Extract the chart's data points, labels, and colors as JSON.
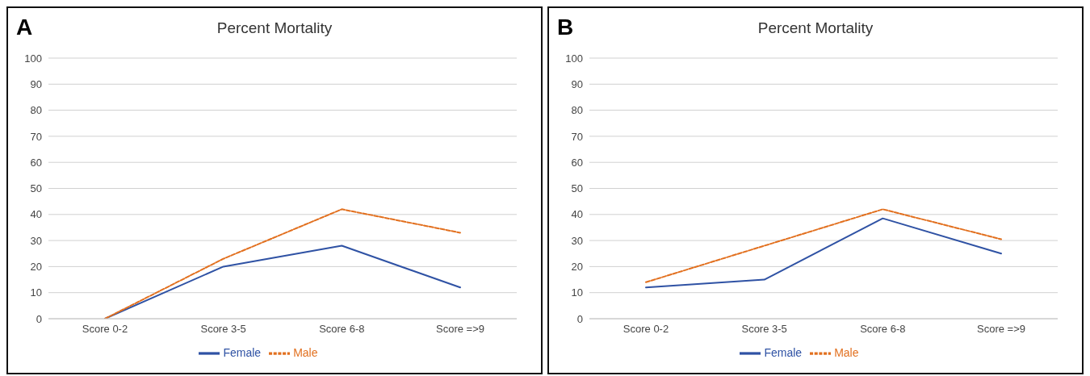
{
  "chart_data": [
    {
      "type": "line",
      "title": "Percent Mortality",
      "annotations": [
        "A"
      ],
      "categories": [
        "Score 0-2",
        "Score 3-5",
        "Score 6-8",
        "Score =>9"
      ],
      "series": [
        {
          "name": "Female",
          "color": "#2f52a4",
          "values": [
            0,
            20,
            28,
            12
          ],
          "line_style": "solid"
        },
        {
          "name": "Male",
          "color": "#e2701f",
          "values": [
            0,
            23,
            42,
            33
          ],
          "line_style": "dashed"
        }
      ],
      "ylim": [
        0,
        100
      ],
      "yticks": [
        0,
        10,
        20,
        30,
        40,
        50,
        60,
        70,
        80,
        90,
        100
      ],
      "grid": "y",
      "legend": "bottom",
      "marker": "none"
    },
    {
      "type": "line",
      "title": "Percent Mortality",
      "annotations": [
        "B"
      ],
      "categories": [
        "Score 0-2",
        "Score 3-5",
        "Score 6-8",
        "Score =>9"
      ],
      "series": [
        {
          "name": "Female",
          "color": "#2f52a4",
          "values": [
            12,
            15,
            38.5,
            25
          ],
          "line_style": "solid"
        },
        {
          "name": "Male",
          "color": "#e2701f",
          "values": [
            14,
            28,
            42,
            30.5
          ],
          "line_style": "dashed"
        }
      ],
      "ylim": [
        0,
        100
      ],
      "yticks": [
        0,
        10,
        20,
        30,
        40,
        50,
        60,
        70,
        80,
        90,
        100
      ],
      "grid": "y",
      "legend": "bottom",
      "marker": "none"
    }
  ]
}
